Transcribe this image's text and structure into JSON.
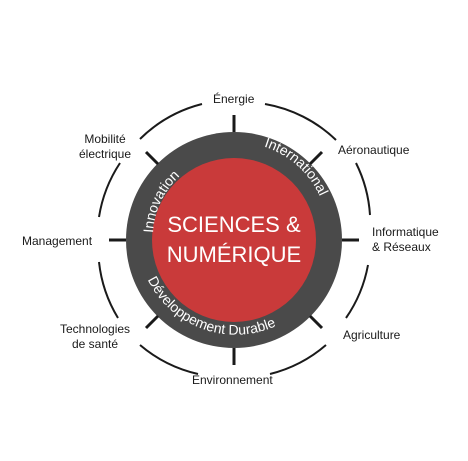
{
  "center": {
    "line1": "SCIENCES &",
    "line2": "NUMÉRIQUE"
  },
  "ring": {
    "innovation": "Innovation",
    "international": "International",
    "durable": "Développement Durable"
  },
  "domains": {
    "energie": "Énergie",
    "aeronautique": "Aéronautique",
    "informatique": "Informatique\n& Réseaux",
    "agriculture": "Agriculture",
    "environnement": "Environnement",
    "technologies": "Technologies\nde santé",
    "management": "Management",
    "mobilite": "Mobilité\nélectrique"
  },
  "colors": {
    "ring": "#4a4a4a",
    "center": "#c93a3a",
    "outline": "#1a1a1a"
  }
}
